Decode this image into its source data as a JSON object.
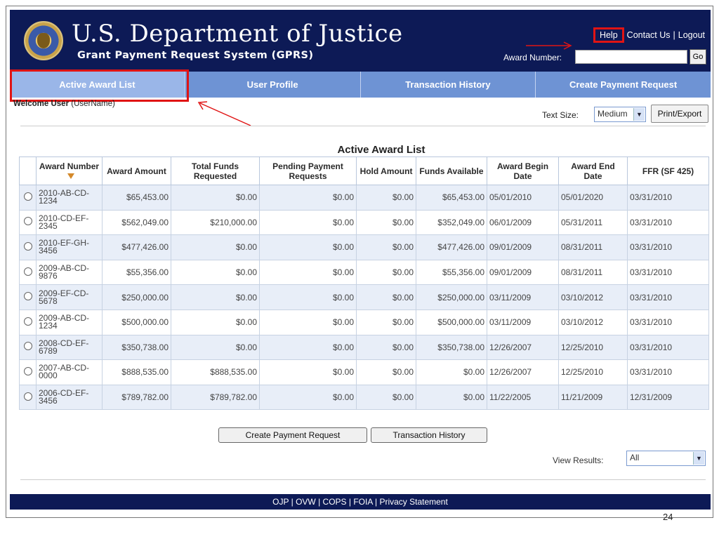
{
  "header": {
    "title": "U.S. Department of Justice",
    "subtitle": "Grant Payment Request System (GPRS)",
    "links": {
      "help": "Help",
      "contact": "Contact Us",
      "logout": "Logout",
      "separator": "|"
    },
    "award_number_label": "Award Number:",
    "award_number_value": "",
    "go_label": "Go"
  },
  "nav": {
    "tabs": [
      {
        "label": "Active Award List"
      },
      {
        "label": "User Profile"
      },
      {
        "label": "Transaction History"
      },
      {
        "label": "Create Payment Request"
      }
    ]
  },
  "welcome": {
    "bold": "Welcome User",
    "rest": " (UserName)"
  },
  "text_size": {
    "label": "Text Size:",
    "value": "Medium"
  },
  "print_label": "Print/Export",
  "table": {
    "title": "Active Award List",
    "headers": [
      "Award Number",
      "Award Amount",
      "Total Funds Requested",
      "Pending Payment Requests",
      "Hold Amount",
      "Funds Available",
      "Award Begin Date",
      "Award End Date",
      "FFR (SF 425)"
    ],
    "rows": [
      [
        "2010-AB-CD-1234",
        "$65,453.00",
        "$0.00",
        "$0.00",
        "$0.00",
        "$65,453.00",
        "05/01/2010",
        "05/01/2020",
        "03/31/2010"
      ],
      [
        "2010-CD-EF-2345",
        "$562,049.00",
        "$210,000.00",
        "$0.00",
        "$0.00",
        "$352,049.00",
        "06/01/2009",
        "05/31/2011",
        "03/31/2010"
      ],
      [
        "2010-EF-GH-3456",
        "$477,426.00",
        "$0.00",
        "$0.00",
        "$0.00",
        "$477,426.00",
        "09/01/2009",
        "08/31/2011",
        "03/31/2010"
      ],
      [
        "2009-AB-CD-9876",
        "$55,356.00",
        "$0.00",
        "$0.00",
        "$0.00",
        "$55,356.00",
        "09/01/2009",
        "08/31/2011",
        "03/31/2010"
      ],
      [
        "2009-EF-CD-5678",
        "$250,000.00",
        "$0.00",
        "$0.00",
        "$0.00",
        "$250,000.00",
        "03/11/2009",
        "03/10/2012",
        "03/31/2010"
      ],
      [
        "2009-AB-CD-1234",
        "$500,000.00",
        "$0.00",
        "$0.00",
        "$0.00",
        "$500,000.00",
        "03/11/2009",
        "03/10/2012",
        "03/31/2010"
      ],
      [
        "2008-CD-EF-6789",
        "$350,738.00",
        "$0.00",
        "$0.00",
        "$0.00",
        "$350,738.00",
        "12/26/2007",
        "12/25/2010",
        "03/31/2010"
      ],
      [
        "2007-AB-CD-0000",
        "$888,535.00",
        "$888,535.00",
        "$0.00",
        "$0.00",
        "$0.00",
        "12/26/2007",
        "12/25/2010",
        "03/31/2010"
      ],
      [
        "2006-CD-EF-3456",
        "$789,782.00",
        "$789,782.00",
        "$0.00",
        "$0.00",
        "$0.00",
        "11/22/2005",
        "11/21/2009",
        "12/31/2009"
      ]
    ]
  },
  "buttons": {
    "create": "Create Payment Request",
    "transaction": "Transaction History"
  },
  "view_results": {
    "label": "View Results:",
    "value": "All"
  },
  "footer": "OJP | OVW | COPS | FOIA | Privacy Statement",
  "page_number": "24",
  "colors": {
    "header_bg": "#0d1a56",
    "nav_bg": "#6e93d4",
    "nav_active": "#9ab6e8",
    "highlight": "#e01414",
    "row_alt": "#e8eef8"
  },
  "icons": {
    "seal": "doj-seal-icon",
    "sort": "sort-desc-icon",
    "dropdown": "chevron-down-icon",
    "radio": "radio-icon",
    "arrow": "red-arrow-icon"
  }
}
